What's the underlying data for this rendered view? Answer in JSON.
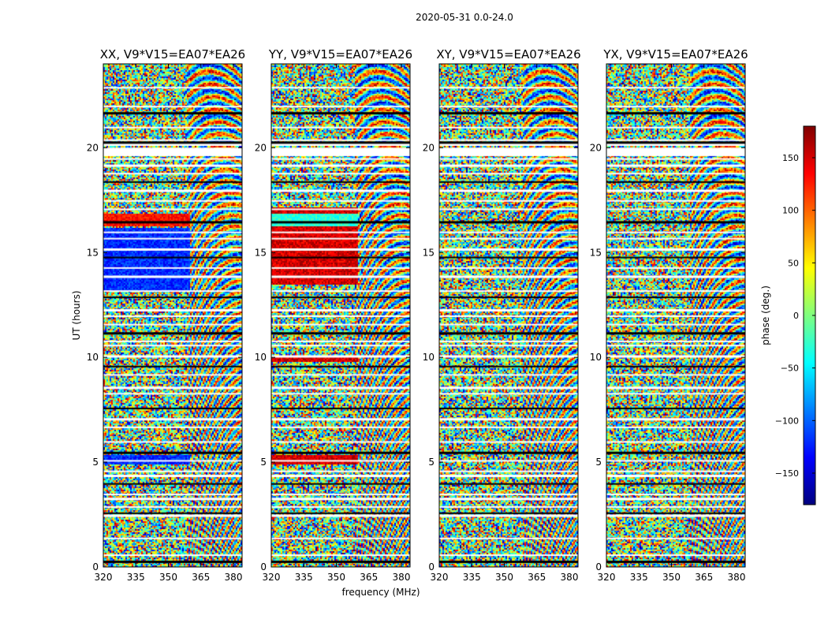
{
  "figure": {
    "suptitle": "2020-05-31 0.0-24.0"
  },
  "chart_data": {
    "type": "heatmap",
    "panels": [
      {
        "title": "XX, V9*V15=EA07*EA26",
        "pol": "XX"
      },
      {
        "title": "YY, V9*V15=EA07*EA26",
        "pol": "YY"
      },
      {
        "title": "XY, V9*V15=EA07*EA26",
        "pol": "XY"
      },
      {
        "title": "YX, V9*V15=EA07*EA26",
        "pol": "YX"
      }
    ],
    "xlabel": "frequency (MHz)",
    "ylabel": "UT (hours)",
    "xlim": [
      320,
      384
    ],
    "ylim": [
      0,
      24
    ],
    "xticks": [
      320,
      335,
      350,
      365,
      380
    ],
    "yticks": [
      0,
      5,
      10,
      15,
      20
    ],
    "colorbar": {
      "label": "phase (deg.)",
      "range": [
        -180,
        180
      ],
      "ticks": [
        150,
        100,
        50,
        0,
        -50,
        -100,
        -150
      ],
      "tick_labels": [
        "150",
        "100",
        "50",
        "0",
        "−50",
        "−100",
        "−150"
      ],
      "colormap": "jet",
      "colors": [
        "#00007f",
        "#0000ff",
        "#007fff",
        "#00ffff",
        "#7fff7f",
        "#ffff00",
        "#ff7f00",
        "#ff0000",
        "#7f0000"
      ]
    },
    "flagged_hours": [
      0.3,
      0.6,
      1.4,
      2.5,
      2.6,
      2.9,
      3.3,
      3.5,
      4.0,
      4.4,
      4.6,
      5.1,
      5.5,
      6.0,
      6.7,
      7.1,
      7.6,
      8.3,
      8.6,
      9.2,
      9.6,
      10.1,
      10.6,
      10.8,
      11.2,
      11.6,
      12.0,
      12.3,
      12.9,
      13.2,
      13.9,
      14.3,
      14.8,
      15.2,
      15.7,
      16.0,
      16.5,
      17.1,
      17.5,
      18.0,
      18.4,
      18.8,
      19.2,
      19.5,
      19.8,
      20.2,
      20.4,
      21.0,
      21.7,
      22.0,
      22.9
    ]
  }
}
